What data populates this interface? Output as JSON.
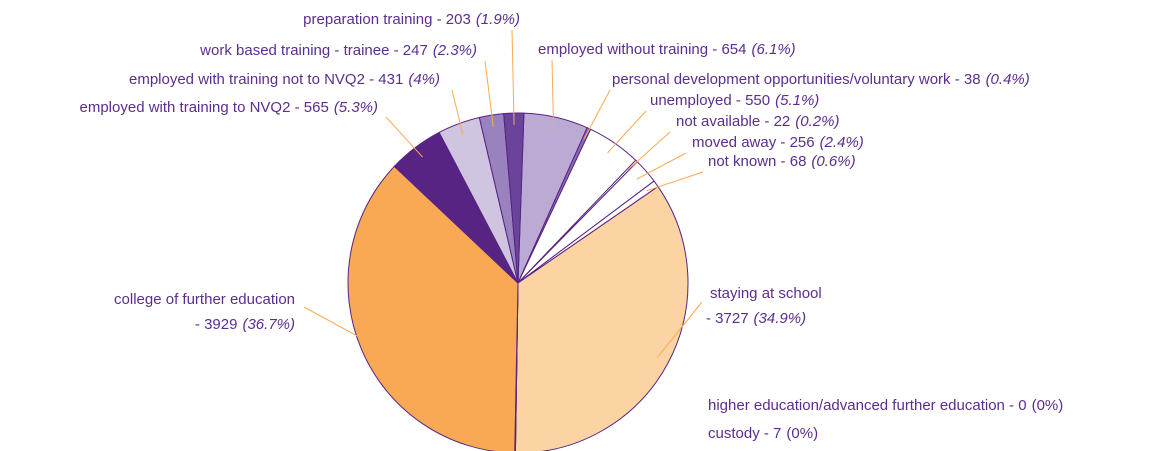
{
  "chart_data": {
    "type": "pie",
    "categories": [
      "employed without training",
      "personal development opportunities/voluntary work",
      "unemployed",
      "not available",
      "moved away",
      "not known",
      "staying at school",
      "higher education/advanced further education",
      "custody",
      "college of further education",
      "employed with training to NVQ2",
      "employed with training not to NVQ2",
      "work based training - trainee",
      "preparation training"
    ],
    "values": [
      654,
      38,
      550,
      22,
      256,
      68,
      3727,
      0,
      7,
      3929,
      565,
      431,
      247,
      203
    ],
    "percent_labels": [
      "(6.1%)",
      "(0.4%)",
      "(5.1%)",
      "(0.2%)",
      "(2.4%)",
      "(0.6%)",
      "(34.9%)",
      "(0%)",
      "(0%)",
      "(36.7%)",
      "(5.3%)",
      "(4%)",
      "(2.3%)",
      "(1.9%)"
    ],
    "label_separator": " - ",
    "colors": [
      "#bbaad3",
      "#8a6bb3",
      "#ffffff",
      "#ffffff",
      "#ffffff",
      "#ffffff",
      "#fcd3a2",
      "#ffffff",
      "#ffffff",
      "#f9a953",
      "#572484",
      "#cfc5e1",
      "#9a82be",
      "#6a449a"
    ]
  }
}
